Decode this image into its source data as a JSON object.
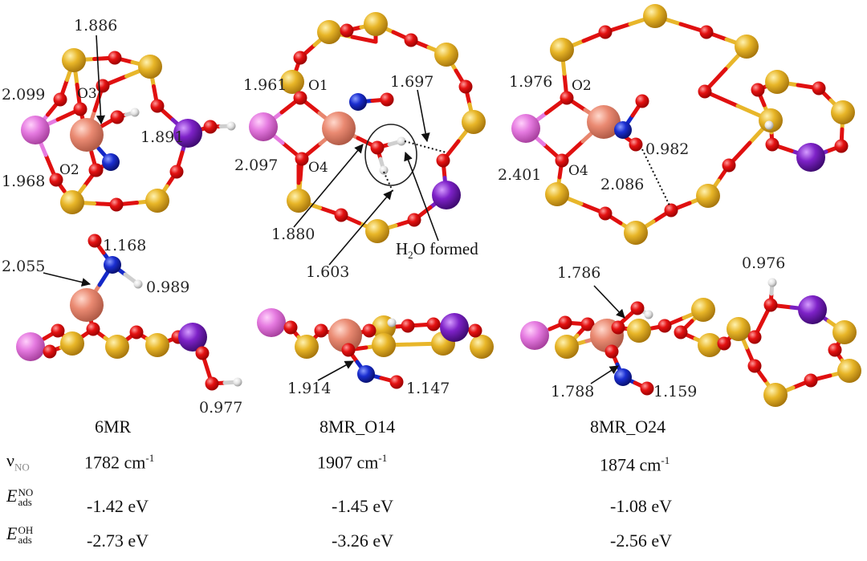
{
  "panels": [
    {
      "name": "6MR",
      "top_distances": [
        "1.886",
        "2.099",
        "1.891",
        "1.968"
      ],
      "top_oxygen_labels": [
        "O3",
        "O2"
      ],
      "side_distances": [
        "1.168",
        "2.055",
        "0.989",
        "0.977"
      ]
    },
    {
      "name": "8MR_O14",
      "top_distances": [
        "1.961",
        "1.697",
        "2.097",
        "1.880",
        "1.603"
      ],
      "top_oxygen_labels": [
        "O1",
        "O4"
      ],
      "annotation": {
        "prefix": "H",
        "sub": "2",
        "suffix": "O formed"
      },
      "side_distances": [
        "1.914",
        "1.147"
      ]
    },
    {
      "name": "8MR_O24",
      "top_distances": [
        "1.976",
        "0.982",
        "2.401",
        "2.086"
      ],
      "top_oxygen_labels": [
        "O2",
        "O4"
      ],
      "side_distances": [
        "1.786",
        "0.976",
        "1.788",
        "1.159"
      ]
    }
  ],
  "table": {
    "rows": [
      {
        "label_main": "ν",
        "label_sub": "NO",
        "label_sup": "",
        "values": [
          "1782 cm",
          "1907 cm",
          "1874 cm"
        ],
        "value_sup": "-1"
      },
      {
        "label_main": "E",
        "label_sub": "ads",
        "label_sup": "NO",
        "values": [
          "-1.42 eV",
          "-1.45 eV",
          "-1.08 eV"
        ],
        "value_sup": ""
      },
      {
        "label_main": "E",
        "label_sub": "ads",
        "label_sup": "OH",
        "values": [
          "-2.73 eV",
          "-3.26 eV",
          "-2.56 eV"
        ],
        "value_sup": ""
      }
    ]
  },
  "colors": {
    "Si": "#e0b020",
    "O": "#e01010",
    "N": "#1428c8",
    "H": "#dcdcdc",
    "Cu": "#e8866e",
    "K": "#7a1fc0",
    "Al": "#e67ae0",
    "bond_Si_O": "#e8b62a",
    "label_text": "#262626"
  },
  "atom_legend_names": [
    "Si",
    "O",
    "N",
    "H",
    "Cu",
    "K",
    "Al"
  ]
}
